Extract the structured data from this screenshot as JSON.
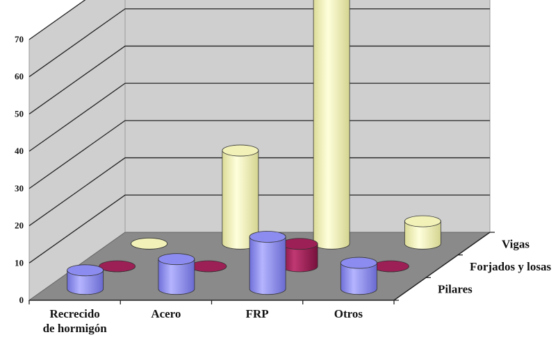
{
  "chart_data": {
    "type": "bar",
    "variant": "3d-cylinder",
    "title": "",
    "xlabel": "",
    "ylabel": "",
    "ylim": [
      0,
      70
    ],
    "yticks": [
      0,
      10,
      20,
      30,
      40,
      50,
      60,
      70
    ],
    "categories": [
      "Recrecido\nde hormigón",
      "Acero",
      "FRP",
      "Otros"
    ],
    "series": [
      {
        "name": "Pilares",
        "color": "#8c8cf0",
        "values": [
          5,
          8,
          14,
          7
        ]
      },
      {
        "name": "Forjados y losas",
        "color": "#9c1f55",
        "values": [
          0,
          0,
          6,
          0
        ]
      },
      {
        "name": "Vigas",
        "color": "#f2f2b8",
        "values": [
          0,
          25,
          67,
          6
        ]
      }
    ],
    "grid": true,
    "colors": {
      "walls": "#cfcfcf",
      "floor": "#8a8a8a",
      "gridline": "#222222"
    }
  }
}
